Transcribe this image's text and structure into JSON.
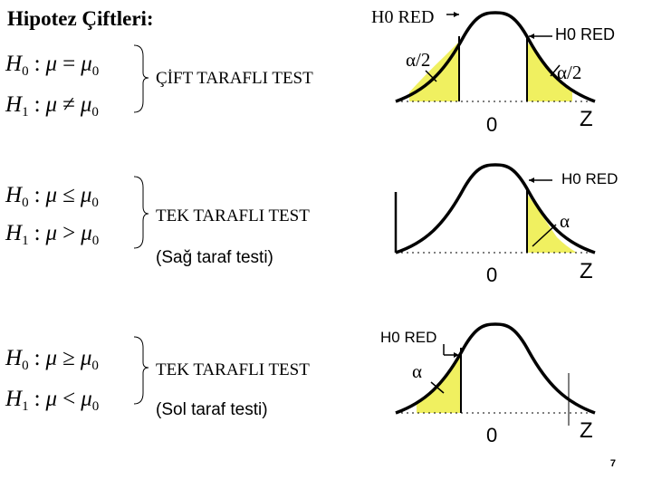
{
  "title": "Hipotez Çiftleri:",
  "sections": [
    {
      "h0": {
        "lhs": "H",
        "sub": "0",
        "colon": ":",
        "mu": "μ",
        "op": "=",
        "mu0": "μ",
        "mu0sub": "0"
      },
      "h1": {
        "lhs": "H",
        "sub": "1",
        "colon": ":",
        "mu": "μ",
        "op": "≠",
        "mu0": "μ",
        "mu0sub": "0"
      },
      "test_label": "ÇİFT TARAFLI TEST",
      "note": "",
      "rej_left_label": "H0 RED",
      "rej_right_label": "H0 RED",
      "alpha_left": "α/2",
      "alpha_right": "α/2",
      "zero": "0",
      "z": "Z"
    },
    {
      "h0": {
        "lhs": "H",
        "sub": "0",
        "colon": ":",
        "mu": "μ",
        "op": "≤",
        "mu0": "μ",
        "mu0sub": "0"
      },
      "h1": {
        "lhs": "H",
        "sub": "1",
        "colon": ":",
        "mu": "μ",
        "op": ">",
        "mu0": "μ",
        "mu0sub": "0"
      },
      "test_label": "TEK TARAFLI TEST",
      "note": "(Sağ taraf testi)",
      "rej_right_label": "H0 RED",
      "alpha_right": "α",
      "zero": "0",
      "z": "Z"
    },
    {
      "h0": {
        "lhs": "H",
        "sub": "0",
        "colon": ":",
        "mu": "μ",
        "op": "≥",
        "mu0": "μ",
        "mu0sub": "0"
      },
      "h1": {
        "lhs": "H",
        "sub": "1",
        "colon": ":",
        "mu": "μ",
        "op": "<",
        "mu0": "μ",
        "mu0sub": "0"
      },
      "test_label": "TEK TARAFLI TEST",
      "note": "(Sol taraf testi)",
      "rej_left_label": "H0 RED",
      "alpha_left": "α",
      "zero": "0",
      "z": "Z"
    }
  ],
  "page_number": "7",
  "colors": {
    "rejection_fill": "#f0f060",
    "curve": "#000000"
  }
}
